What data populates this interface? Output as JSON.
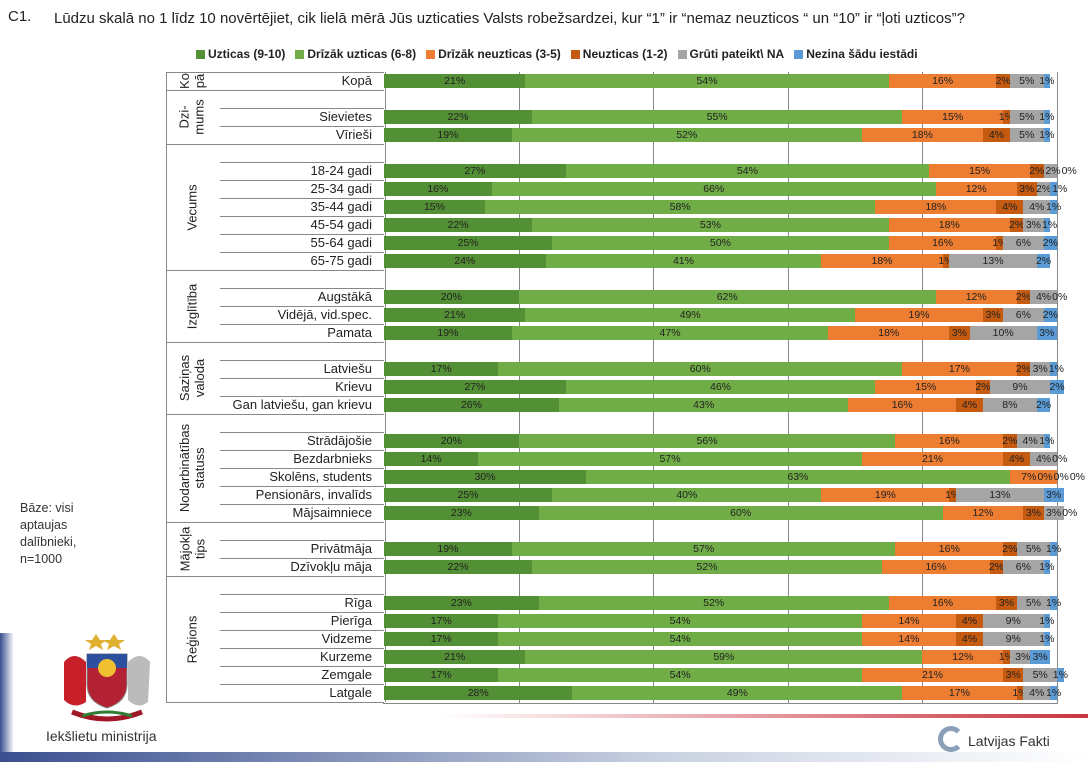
{
  "question": {
    "number": "C1.",
    "text": "Lūdzu skalā no 1 līdz 10 novērtējiet, cik lielā mērā Jūs uzticaties Valsts robežsardzei, kur “1” ir “nemaz neuzticos “ un “10” ir “ļoti uzticos”?"
  },
  "base_note": "Bāze: visi aptaujas dalībnieki, n=1000",
  "footer": {
    "ministry": "Iekšlietu ministrija",
    "company": "Latvijas Fakti"
  },
  "chart_data": {
    "type": "bar",
    "orientation": "horizontal",
    "stacked": true,
    "normalized_percent": true,
    "xlim": [
      0,
      100
    ],
    "grid": true,
    "legend_position": "top",
    "data_label_suffix": "%",
    "series": [
      {
        "name": "Uzticas (9-10)",
        "color": "#538f34"
      },
      {
        "name": "Drīzāk uzticas (6-8)",
        "color": "#70ad47"
      },
      {
        "name": "Drīzāk neuzticas (3-5)",
        "color": "#ed7d31"
      },
      {
        "name": "Neuzticas (1-2)",
        "color": "#c55a11"
      },
      {
        "name": "Grūti pateikt\\ NA",
        "color": "#a5a5a5"
      },
      {
        "name": "Nezina šādu iestādi",
        "color": "#5b9bd5"
      }
    ],
    "groups": [
      {
        "label": "Ko\npā",
        "rows": [
          {
            "label": "Kopā",
            "values": [
              21,
              54,
              16,
              2,
              5,
              1
            ]
          }
        ]
      },
      {
        "label": "Dzi-\nmums",
        "rows": [
          {
            "label": "Sievietes",
            "values": [
              22,
              55,
              15,
              1,
              5,
              1
            ]
          },
          {
            "label": "Vīrieši",
            "values": [
              19,
              52,
              18,
              4,
              5,
              1
            ]
          }
        ]
      },
      {
        "label": "Vecums",
        "rows": [
          {
            "label": "18-24 gadi",
            "values": [
              27,
              54,
              15,
              2,
              2,
              0
            ]
          },
          {
            "label": "25-34 gadi",
            "values": [
              16,
              66,
              12,
              3,
              2,
              1
            ]
          },
          {
            "label": "35-44 gadi",
            "values": [
              15,
              58,
              18,
              4,
              4,
              1
            ]
          },
          {
            "label": "45-54 gadi",
            "values": [
              22,
              53,
              18,
              2,
              3,
              1
            ]
          },
          {
            "label": "55-64 gadi",
            "values": [
              25,
              50,
              16,
              1,
              6,
              2
            ]
          },
          {
            "label": "65-75 gadi",
            "values": [
              24,
              41,
              18,
              1,
              13,
              2
            ]
          }
        ]
      },
      {
        "label": "Izglītība",
        "rows": [
          {
            "label": "Augstākā",
            "values": [
              20,
              62,
              12,
              2,
              4,
              0
            ]
          },
          {
            "label": "Vidējā, vid.spec.",
            "values": [
              21,
              49,
              19,
              3,
              6,
              2
            ]
          },
          {
            "label": "Pamata",
            "values": [
              19,
              47,
              18,
              3,
              10,
              3
            ]
          }
        ]
      },
      {
        "label": "Saziņas\nvaloda",
        "rows": [
          {
            "label": "Latviešu",
            "values": [
              17,
              60,
              17,
              2,
              3,
              1
            ]
          },
          {
            "label": "Krievu",
            "values": [
              27,
              46,
              15,
              2,
              9,
              2
            ]
          },
          {
            "label": "Gan latviešu, gan krievu",
            "values": [
              26,
              43,
              16,
              4,
              8,
              2
            ]
          }
        ]
      },
      {
        "label": "Nodarbinātības\nstatuss",
        "rows": [
          {
            "label": "Strādājošie",
            "values": [
              20,
              56,
              16,
              2,
              4,
              1
            ]
          },
          {
            "label": "Bezdarbnieks",
            "values": [
              14,
              57,
              21,
              4,
              4,
              0
            ]
          },
          {
            "label": "Skolēns, students",
            "values": [
              30,
              63,
              7,
              0,
              0,
              0
            ]
          },
          {
            "label": "Pensionārs, invalīds",
            "values": [
              25,
              40,
              19,
              1,
              13,
              3
            ]
          },
          {
            "label": "Mājsaimniece",
            "values": [
              23,
              60,
              12,
              3,
              3,
              0
            ]
          }
        ]
      },
      {
        "label": "Mājokļa\ntips",
        "rows": [
          {
            "label": "Privātmāja",
            "values": [
              19,
              57,
              16,
              2,
              5,
              1
            ]
          },
          {
            "label": "Dzīvokļu māja",
            "values": [
              22,
              52,
              16,
              2,
              6,
              1
            ]
          }
        ]
      },
      {
        "label": "Reģions",
        "rows": [
          {
            "label": "Rīga",
            "values": [
              23,
              52,
              16,
              3,
              5,
              1
            ]
          },
          {
            "label": "Pierīga",
            "values": [
              17,
              54,
              14,
              4,
              9,
              1
            ]
          },
          {
            "label": "Vidzeme",
            "values": [
              17,
              54,
              14,
              4,
              9,
              1
            ]
          },
          {
            "label": "Kurzeme",
            "values": [
              21,
              59,
              12,
              1,
              3,
              3
            ]
          },
          {
            "label": "Zemgale",
            "values": [
              17,
              54,
              21,
              3,
              5,
              1
            ]
          },
          {
            "label": "Latgale",
            "values": [
              28,
              49,
              17,
              1,
              4,
              1
            ]
          }
        ]
      }
    ]
  }
}
